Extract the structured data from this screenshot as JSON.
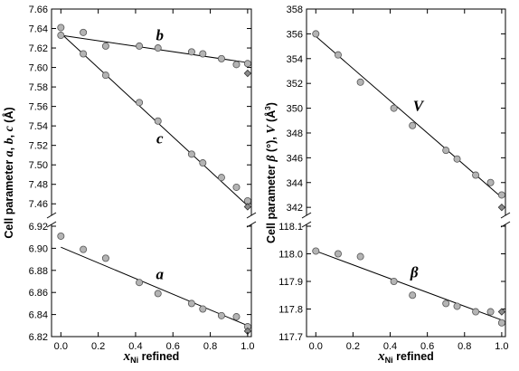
{
  "chart_data": [
    {
      "type": "scatter",
      "panel": "left",
      "ylabel": "Cell parameter a, b, c (Å)",
      "xlabel": "xNi refined",
      "xlabel_main": "x",
      "xlabel_sub": "Ni",
      "xlabel_rest": " refined",
      "ylabel_parts": [
        "Cell parameter ",
        "a",
        ", ",
        "b",
        ", ",
        "c",
        " (Å)"
      ],
      "xlim": [
        -0.05,
        1.02
      ],
      "xticks": [
        "0.0",
        "0.2",
        "0.4",
        "0.6",
        "0.8",
        "1.0"
      ],
      "axis_break": true,
      "grid": false,
      "segments": [
        {
          "name": "upper",
          "ylim": [
            7.45,
            7.66
          ],
          "yticks": [
            "7.46",
            "7.48",
            "7.50",
            "7.52",
            "7.54",
            "7.56",
            "7.58",
            "7.60",
            "7.62",
            "7.64",
            "7.66"
          ],
          "series": [
            {
              "name": "b",
              "x": [
                0.0,
                0.12,
                0.24,
                0.42,
                0.52,
                0.7,
                0.76,
                0.86,
                0.94,
                1.0
              ],
              "y": [
                7.641,
                7.636,
                7.622,
                7.622,
                7.62,
                7.616,
                7.614,
                7.609,
                7.603,
                7.604
              ],
              "refined_x": 1.0,
              "refined_y": 7.594,
              "fit": [
                [
                  0.0,
                  7.633
                ],
                [
                  1.0,
                  7.605
                ]
              ],
              "label_x": 0.53,
              "label_y": 7.628
            },
            {
              "name": "c",
              "x": [
                0.0,
                0.12,
                0.24,
                0.42,
                0.52,
                0.7,
                0.76,
                0.86,
                0.94,
                1.0
              ],
              "y": [
                7.633,
                7.614,
                7.592,
                7.564,
                7.545,
                7.511,
                7.502,
                7.487,
                7.477,
                7.463
              ],
              "refined_x": 1.0,
              "refined_y": 7.457,
              "fit": [
                [
                  0.0,
                  7.635
                ],
                [
                  1.0,
                  7.458
                ]
              ],
              "label_x": 0.53,
              "label_y": 7.522
            }
          ]
        },
        {
          "name": "lower",
          "ylim": [
            6.82,
            6.92
          ],
          "yticks": [
            "6.82",
            "6.84",
            "6.86",
            "6.88",
            "6.90",
            "6.92"
          ],
          "series": [
            {
              "name": "a",
              "x": [
                0.0,
                0.12,
                0.24,
                0.42,
                0.52,
                0.7,
                0.76,
                0.86,
                0.94,
                1.0
              ],
              "y": [
                6.911,
                6.899,
                6.891,
                6.869,
                6.859,
                6.85,
                6.845,
                6.839,
                6.838,
                6.829
              ],
              "refined_x": 1.0,
              "refined_y": 6.825,
              "fit": [
                [
                  0.0,
                  6.901
                ],
                [
                  1.0,
                  6.83
                ]
              ],
              "label_x": 0.53,
              "label_y": 6.872
            }
          ]
        }
      ]
    },
    {
      "type": "scatter",
      "panel": "right",
      "ylabel": "Cell parameter β (°), V (Å3)",
      "xlabel": "xNi refined",
      "xlabel_main": "x",
      "xlabel_sub": "Ni",
      "xlabel_rest": " refined",
      "ylabel_parts": [
        "Cell parameter ",
        "β",
        " (°), ",
        "V",
        " (Å",
        "3",
        ")"
      ],
      "xlim": [
        -0.05,
        1.02
      ],
      "xticks": [
        "0.0",
        "0.2",
        "0.4",
        "0.6",
        "0.8",
        "1.0"
      ],
      "axis_break": true,
      "grid": false,
      "segments": [
        {
          "name": "upper",
          "ylim": [
            341.5,
            358
          ],
          "yticks": [
            "342",
            "344",
            "346",
            "348",
            "350",
            "352",
            "354",
            "356",
            "358"
          ],
          "series": [
            {
              "name": "V",
              "x": [
                0.0,
                0.12,
                0.24,
                0.42,
                0.52,
                0.7,
                0.76,
                0.86,
                0.94,
                1.0
              ],
              "y": [
                356.0,
                354.3,
                352.1,
                350.0,
                348.6,
                346.6,
                345.9,
                344.6,
                344.0,
                343.0
              ],
              "refined_x": 1.0,
              "refined_y": 342.0,
              "fit": [
                [
                  0.0,
                  355.8
                ],
                [
                  1.0,
                  342.8
                ]
              ],
              "label_x": 0.55,
              "label_y": 349.8
            }
          ]
        },
        {
          "name": "lower",
          "ylim": [
            117.7,
            118.1
          ],
          "yticks": [
            "117.7",
            "117.8",
            "117.9",
            "118.0",
            "118.1"
          ],
          "series": [
            {
              "name": "β",
              "x": [
                0.0,
                0.12,
                0.24,
                0.42,
                0.52,
                0.7,
                0.76,
                0.86,
                0.94,
                1.0
              ],
              "y": [
                118.01,
                118.0,
                117.99,
                117.9,
                117.85,
                117.82,
                117.81,
                117.79,
                117.79,
                117.75
              ],
              "refined_x": 1.0,
              "refined_y": 117.79,
              "fit": [
                [
                  0.0,
                  118.01
                ],
                [
                  1.0,
                  117.76
                ]
              ],
              "label_x": 0.53,
              "label_y": 117.915
            }
          ]
        }
      ]
    }
  ]
}
